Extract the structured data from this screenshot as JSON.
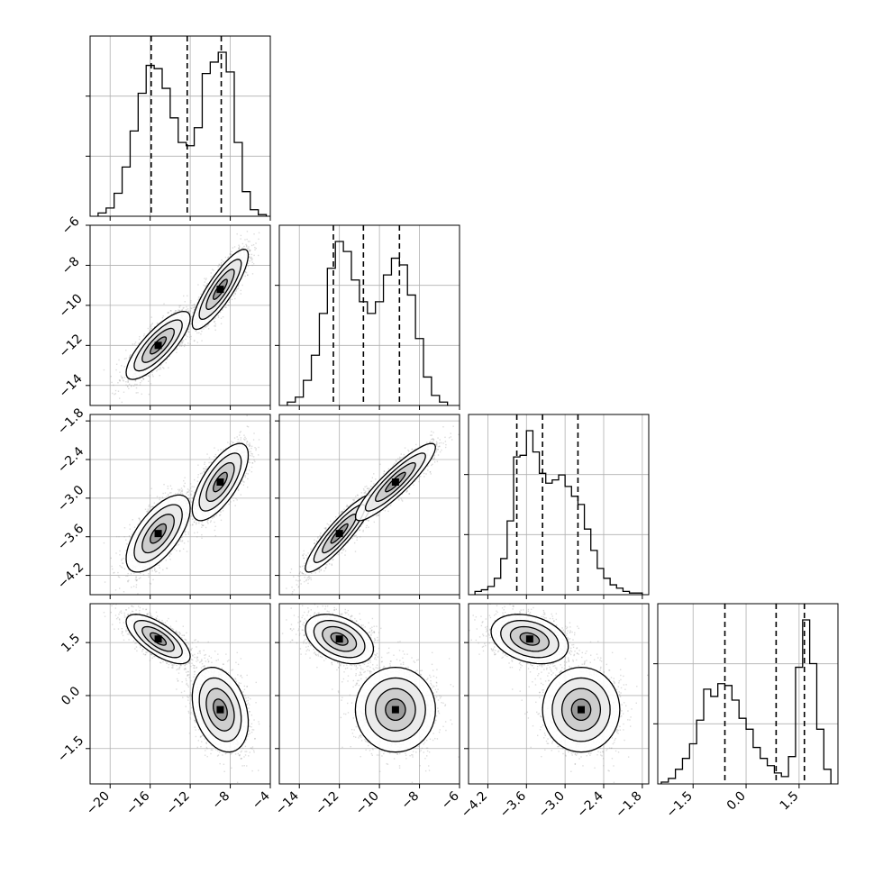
{
  "chart_data": {
    "type": "corner",
    "grid": true,
    "colors": {
      "line": "#000000",
      "grid": "#b0b0b0",
      "scatter": "#9a9a9a",
      "density_light": "#f2f2f2",
      "density_dark": "#000000"
    },
    "parameters": [
      {
        "range": [
          -22,
          -4
        ],
        "ticks": [
          -20,
          -16,
          -12,
          -8,
          -4
        ],
        "tick_labels": [
          "−20",
          "−16",
          "−12",
          "−8",
          "−4"
        ],
        "quantiles": [
          -15.9,
          -12.3,
          -8.9
        ],
        "hist_bin_edges": [
          -21.2,
          -20.4,
          -19.6,
          -18.8,
          -18.0,
          -17.2,
          -16.4,
          -15.6,
          -14.8,
          -14.0,
          -13.2,
          -12.4,
          -11.6,
          -10.8,
          -10.0,
          -9.2,
          -8.4,
          -7.6,
          -6.8,
          -6.0,
          -5.2,
          -4.4
        ],
        "hist_counts": [
          2,
          5,
          14,
          30,
          52,
          75,
          92,
          90,
          78,
          60,
          45,
          43,
          54,
          87,
          94,
          100,
          88,
          45,
          15,
          4,
          1
        ]
      },
      {
        "range": [
          -15,
          -6
        ],
        "ticks": [
          -14,
          -12,
          -10,
          -8,
          -6
        ],
        "tick_labels": [
          "−14",
          "−12",
          "−10",
          "−8",
          "−6"
        ],
        "quantiles": [
          -12.3,
          -10.8,
          -9.0
        ],
        "hist_bin_edges": [
          -14.6,
          -14.2,
          -13.8,
          -13.4,
          -13.0,
          -12.6,
          -12.2,
          -11.8,
          -11.4,
          -11.0,
          -10.6,
          -10.2,
          -9.8,
          -9.4,
          -9.0,
          -8.6,
          -8.2,
          -7.8,
          -7.4,
          -7.0,
          -6.6
        ],
        "hist_counts": [
          2,
          5,
          15,
          30,
          55,
          82,
          98,
          92,
          75,
          62,
          55,
          62,
          78,
          88,
          84,
          66,
          40,
          17,
          6,
          2
        ]
      },
      {
        "range": [
          -4.5,
          -1.7
        ],
        "ticks": [
          -4.2,
          -3.6,
          -3.0,
          -2.4,
          -1.8
        ],
        "tick_labels": [
          "−4.2",
          "−3.6",
          "−3.0",
          "−2.4",
          "−1.8"
        ],
        "quantiles": [
          -3.75,
          -3.35,
          -2.8
        ],
        "hist_bin_edges": [
          -4.4,
          -4.3,
          -4.2,
          -4.1,
          -4.0,
          -3.9,
          -3.8,
          -3.7,
          -3.6,
          -3.5,
          -3.4,
          -3.3,
          -3.2,
          -3.1,
          -3.0,
          -2.9,
          -2.8,
          -2.7,
          -2.6,
          -2.5,
          -2.4,
          -2.3,
          -2.2,
          -2.1,
          -2.0,
          -1.9,
          -1.8
        ],
        "hist_counts": [
          2,
          3,
          5,
          10,
          22,
          45,
          84,
          85,
          100,
          87,
          74,
          68,
          70,
          73,
          66,
          60,
          55,
          40,
          27,
          16,
          10,
          6,
          4,
          2,
          1,
          1
        ]
      },
      {
        "range": [
          -2.5,
          2.6
        ],
        "ticks": [
          -1.5,
          0.0,
          1.5
        ],
        "tick_labels": [
          "−1.5",
          "0.0",
          "1.5"
        ],
        "quantiles": [
          -0.6,
          0.85,
          1.65
        ],
        "hist_bin_edges": [
          -2.4,
          -2.2,
          -2.0,
          -1.8,
          -1.6,
          -1.4,
          -1.2,
          -1.0,
          -0.8,
          -0.6,
          -0.4,
          -0.2,
          0.0,
          0.2,
          0.4,
          0.6,
          0.8,
          1.0,
          1.2,
          1.4,
          1.6,
          1.8,
          2.0,
          2.2,
          2.4
        ],
        "hist_counts": [
          1,
          3,
          8,
          14,
          22,
          35,
          52,
          48,
          55,
          54,
          46,
          36,
          30,
          20,
          14,
          10,
          6,
          4,
          15,
          64,
          90,
          66,
          30,
          8
        ]
      }
    ],
    "modes": [
      {
        "mean": [
          -15.2,
          -12.0,
          -3.55,
          1.6
        ],
        "std": [
          1.6,
          0.85,
          0.3,
          0.35
        ],
        "corr": [
          [
            1.0,
            0.8,
            0.65,
            -0.7
          ],
          [
            0.8,
            1.0,
            0.9,
            -0.4
          ],
          [
            0.65,
            0.9,
            1.0,
            -0.3
          ],
          [
            -0.7,
            -0.4,
            -0.3,
            1.0
          ]
        ],
        "weight": 0.5
      },
      {
        "mean": [
          -9.0,
          -9.2,
          -2.75,
          -0.4
        ],
        "std": [
          1.4,
          1.0,
          0.3,
          0.6
        ],
        "corr": [
          [
            1.0,
            0.85,
            0.7,
            -0.3
          ],
          [
            0.85,
            1.0,
            0.9,
            0.0
          ],
          [
            0.7,
            0.9,
            1.0,
            0.0
          ],
          [
            -0.3,
            0.0,
            0.0,
            1.0
          ]
        ],
        "weight": 0.5
      }
    ],
    "contour_levels_sigma": [
      0.5,
      1.0,
      1.5,
      2.0
    ]
  }
}
